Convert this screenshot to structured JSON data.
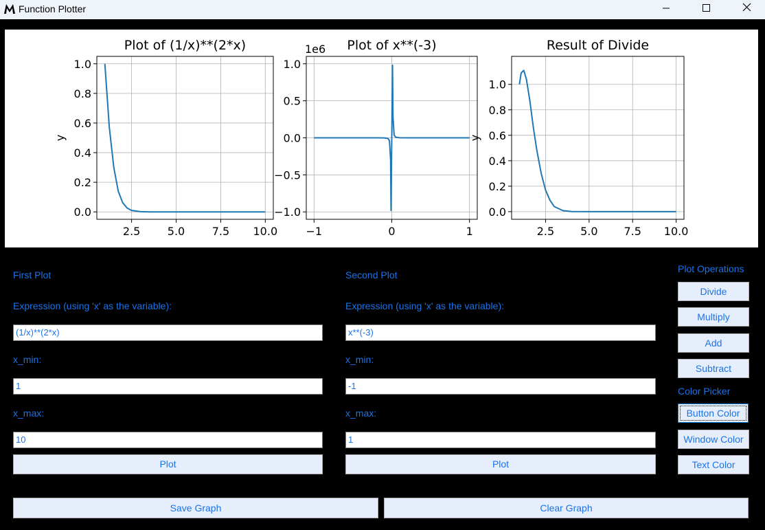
{
  "window": {
    "title": "Function Plotter",
    "controls": [
      "–",
      "☐",
      "✕"
    ]
  },
  "colors": {
    "accent": "#1a73e8",
    "line": "#1f77b4",
    "button_bg": "#e6eefb",
    "background": "#000000"
  },
  "first_plot": {
    "heading": "First Plot",
    "expr_label": "Expression (using 'x' as the variable):",
    "expr_value": "(1/x)**(2*x)",
    "xmin_label": "x_min:",
    "xmin_value": "1",
    "xmax_label": "x_max:",
    "xmax_value": "10",
    "plot_button": "Plot"
  },
  "second_plot": {
    "heading": "Second Plot",
    "expr_label": "Expression (using 'x' as the variable):",
    "expr_value": "x**(-3)",
    "xmin_label": "x_min:",
    "xmin_value": "-1",
    "xmax_label": "x_max:",
    "xmax_value": "1",
    "plot_button": "Plot"
  },
  "operations": {
    "heading": "Plot Operations",
    "buttons": [
      "Divide",
      "Multiply",
      "Add",
      "Subtract"
    ]
  },
  "color_picker": {
    "heading": "Color Picker",
    "buttons": [
      "Button Color",
      "Window Color",
      "Text Color"
    ]
  },
  "bottom": {
    "save": "Save Graph",
    "clear": "Clear Graph"
  },
  "chart_data": [
    {
      "type": "line",
      "title": "Plot of (1/x)**(2*x)",
      "xlabel": "",
      "ylabel": "y",
      "xlim": [
        0.55,
        10.45
      ],
      "ylim": [
        -0.05,
        1.05
      ],
      "xticks": [
        2.5,
        5.0,
        7.5,
        10.0
      ],
      "xtick_labels": [
        "2.5",
        "5.0",
        "7.5",
        "10.0"
      ],
      "yticks": [
        0.0,
        0.2,
        0.4,
        0.6,
        0.8,
        1.0
      ],
      "ytick_labels": [
        "0.0",
        "0.2",
        "0.4",
        "0.6",
        "0.8",
        "1.0"
      ],
      "offset_text": "",
      "grid": true,
      "x": [
        1.0,
        1.25,
        1.5,
        1.75,
        2.0,
        2.25,
        2.5,
        3.0,
        3.5,
        4.0,
        5.0,
        6.0,
        8.0,
        10.0
      ],
      "y": [
        1.0,
        0.57,
        0.3,
        0.14,
        0.0625,
        0.026,
        0.01,
        0.0014,
        0.0002,
        0.0,
        0.0,
        0.0,
        0.0,
        0.0
      ]
    },
    {
      "type": "line",
      "title": "Plot of x**(-3)",
      "xlabel": "",
      "ylabel": "",
      "xlim": [
        -1.1,
        1.1
      ],
      "ylim": [
        -1.1,
        1.1
      ],
      "xticks": [
        -1,
        0,
        1
      ],
      "xtick_labels": [
        "−1",
        "0",
        "1"
      ],
      "yticks": [
        -1.0,
        -0.5,
        0.0,
        0.5,
        1.0
      ],
      "ytick_labels": [
        "−1.0",
        "−0.5",
        "0.0",
        "0.5",
        "1.0"
      ],
      "offset_text": "1e6",
      "grid": true,
      "x": [
        -1.0,
        -0.5,
        -0.2,
        -0.1,
        -0.05,
        -0.03,
        -0.015,
        -0.01,
        0.01,
        0.015,
        0.03,
        0.05,
        0.1,
        0.2,
        0.5,
        1.0
      ],
      "y": [
        0.0,
        0.0,
        -0.0001,
        -0.001,
        -0.008,
        -0.037,
        -0.296,
        -0.98,
        0.98,
        0.296,
        0.037,
        0.008,
        0.001,
        0.0001,
        0.0,
        0.0
      ]
    },
    {
      "type": "line",
      "title": "Result of Divide",
      "xlabel": "",
      "ylabel": "y",
      "xlim": [
        0.55,
        10.45
      ],
      "ylim": [
        -0.06,
        1.22
      ],
      "xticks": [
        2.5,
        5.0,
        7.5,
        10.0
      ],
      "xtick_labels": [
        "2.5",
        "5.0",
        "7.5",
        "10.0"
      ],
      "yticks": [
        0.0,
        0.2,
        0.4,
        0.6,
        0.8,
        1.0
      ],
      "ytick_labels": [
        "0.0",
        "0.2",
        "0.4",
        "0.6",
        "0.8",
        "1.0"
      ],
      "offset_text": "",
      "grid": true,
      "x": [
        1.0,
        1.1,
        1.25,
        1.4,
        1.6,
        1.8,
        2.0,
        2.25,
        2.5,
        2.75,
        3.0,
        3.5,
        4.0,
        5.0,
        7.0,
        10.0
      ],
      "y": [
        1.0,
        1.09,
        1.11,
        1.04,
        0.87,
        0.66,
        0.48,
        0.3,
        0.17,
        0.09,
        0.04,
        0.008,
        0.001,
        0.0,
        0.0,
        0.0
      ]
    }
  ]
}
